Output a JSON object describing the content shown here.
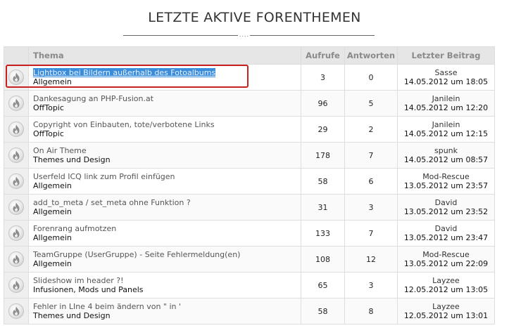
{
  "title": "LETZTE AKTIVE FORENTHEMEN",
  "title_ornament": "....",
  "headers": {
    "thema": "Thema",
    "aufrufe": "Aufrufe",
    "antworten": "Antworten",
    "letzter_beitrag": "Letzter Beitrag"
  },
  "icon": "flame-icon",
  "highlight_color": "#c8201e",
  "rows": [
    {
      "topic": "Lightbox bei Bildern außerhalb des Fotoalbums",
      "forum": "Allgemein",
      "views": "3",
      "replies": "0",
      "poster": "Sasse",
      "date": "14.05.2012 um 18:05"
    },
    {
      "topic": "Dankesagung an PHP-Fusion.at",
      "forum": "OffTopic",
      "views": "96",
      "replies": "5",
      "poster": "Janilein",
      "date": "14.05.2012 um 12:20"
    },
    {
      "topic": "Copyright von Einbauten, tote/verbotene Links",
      "forum": "OffTopic",
      "views": "29",
      "replies": "2",
      "poster": "Janilein",
      "date": "14.05.2012 um 12:15"
    },
    {
      "topic": "On Air Theme",
      "forum": "Themes und Design",
      "views": "178",
      "replies": "7",
      "poster": "spunk",
      "date": "14.05.2012 um 08:57"
    },
    {
      "topic": "Userfeld ICQ link zum Profil einfügen",
      "forum": "Allgemein",
      "views": "58",
      "replies": "6",
      "poster": "Mod-Rescue",
      "date": "13.05.2012 um 23:57"
    },
    {
      "topic": "add_to_meta / set_meta ohne Funktion ?",
      "forum": "Allgemein",
      "views": "31",
      "replies": "3",
      "poster": "David",
      "date": "13.05.2012 um 23:52"
    },
    {
      "topic": "Forenrang aufmotzen",
      "forum": "Allgemein",
      "views": "133",
      "replies": "7",
      "poster": "David",
      "date": "13.05.2012 um 23:47"
    },
    {
      "topic": "TeamGruppe (UserGruppe) - Seite Fehlermeldung(en)",
      "forum": "Allgemein",
      "views": "108",
      "replies": "12",
      "poster": "Mod-Rescue",
      "date": "13.05.2012 um 22:09"
    },
    {
      "topic": "Slideshow im header ?!",
      "forum": "Infusionen, Mods und Panels",
      "views": "65",
      "replies": "3",
      "poster": "Layzee",
      "date": "12.05.2012 um 13:05"
    },
    {
      "topic": "Fehler in LIne 4 beim ändern von \" in '",
      "forum": "Themes und Design",
      "views": "58",
      "replies": "8",
      "poster": "Layzee",
      "date": "12.05.2012 um 13:01"
    }
  ]
}
